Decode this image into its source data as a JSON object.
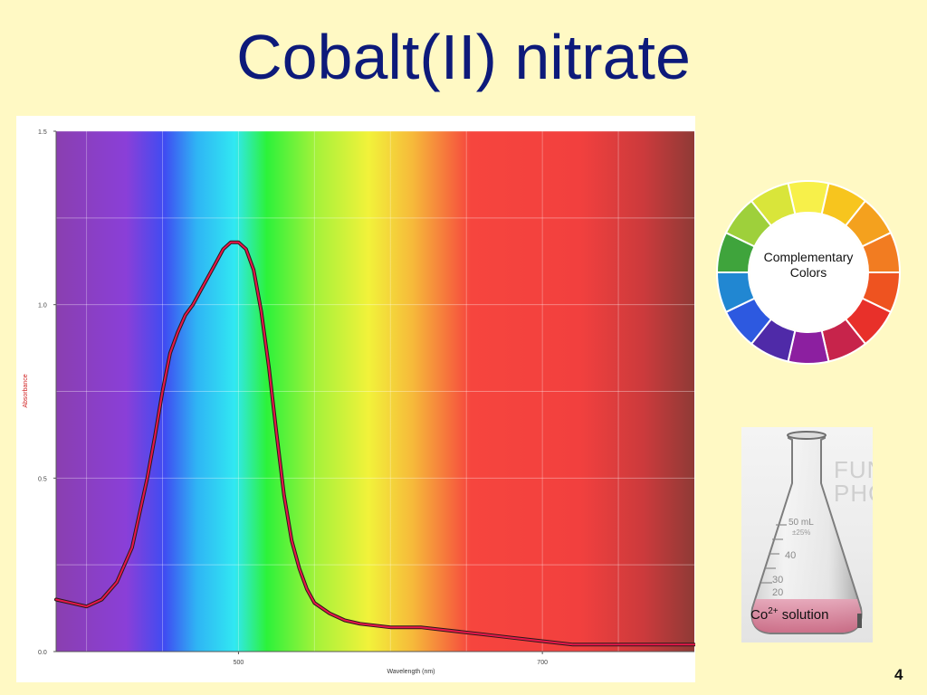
{
  "title": "Cobalt(II) nitrate",
  "chart_data": {
    "type": "line",
    "xlabel": "Wavelength (nm)",
    "ylabel": "Absorbance",
    "x_ticks": [
      500,
      700
    ],
    "y_ticks": [
      "0.0",
      "0.5",
      "1.0",
      "1.5"
    ],
    "xlim": [
      380,
      800
    ],
    "ylim": [
      0,
      1.5
    ],
    "grid": true,
    "background": "visible spectrum (violet to dark red)",
    "series": [
      {
        "color": "#e8174b",
        "x": [
          380,
          390,
          400,
          410,
          420,
          430,
          440,
          445,
          450,
          455,
          460,
          465,
          470,
          475,
          480,
          485,
          490,
          495,
          500,
          505,
          510,
          515,
          520,
          525,
          530,
          535,
          540,
          545,
          550,
          560,
          570,
          580,
          600,
          620,
          640,
          660,
          680,
          700,
          720,
          740,
          760,
          780,
          800
        ],
        "y": [
          0.15,
          0.14,
          0.13,
          0.15,
          0.2,
          0.3,
          0.5,
          0.62,
          0.75,
          0.86,
          0.92,
          0.97,
          1.0,
          1.04,
          1.08,
          1.12,
          1.16,
          1.18,
          1.18,
          1.16,
          1.1,
          0.98,
          0.82,
          0.63,
          0.45,
          0.32,
          0.24,
          0.18,
          0.14,
          0.11,
          0.09,
          0.08,
          0.07,
          0.07,
          0.06,
          0.05,
          0.04,
          0.03,
          0.02,
          0.02,
          0.02,
          0.02,
          0.02
        ]
      }
    ]
  },
  "color_wheel": {
    "label_line1": "Complementary",
    "label_line2": "Colors",
    "segments": [
      "#f7f04a",
      "#f7c51e",
      "#f4a11e",
      "#f27c21",
      "#ee5320",
      "#e8302a",
      "#c7244b",
      "#8c1fa0",
      "#4f2aa8",
      "#2d59e0",
      "#2187d2",
      "#3fa43c",
      "#9ed03b",
      "#d9e53a"
    ]
  },
  "flask": {
    "caption_prefix": "Co",
    "caption_superscript": "2+",
    "caption_suffix": " solution",
    "watermark_line1": "FUN",
    "watermark_line2": "PHO",
    "volume_marks": [
      "50 mL",
      "±25%",
      "40",
      "30",
      "20"
    ]
  },
  "page_number": "4"
}
